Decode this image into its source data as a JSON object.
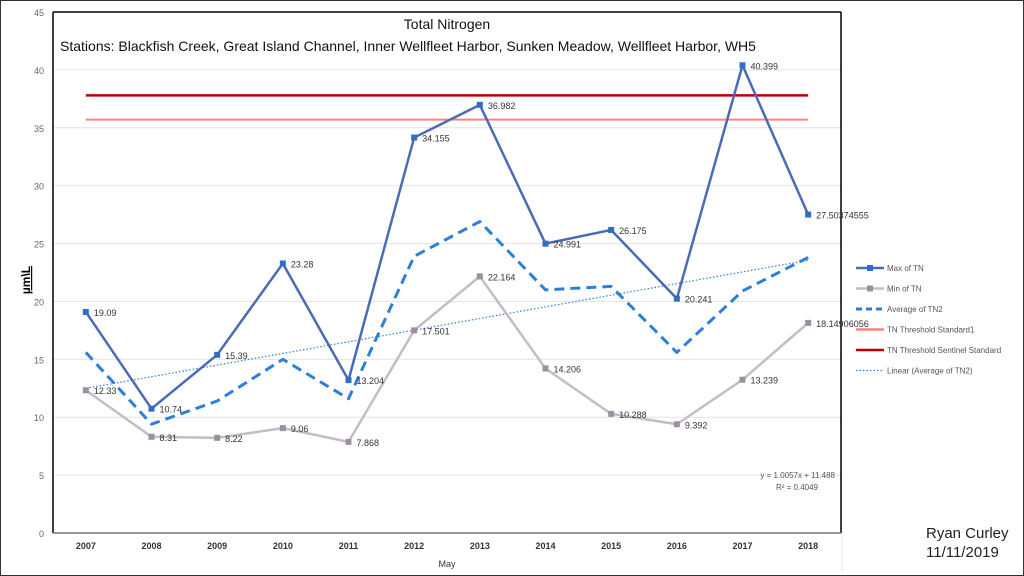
{
  "chart_data": {
    "type": "line",
    "title": "Total Nitrogen",
    "subtitle": "Stations: Blackfish Creek, Great Island Channel, Inner Wellfleet Harbor, Sunken Meadow, Wellfleet Harbor, WH5",
    "xlabel": "May",
    "ylabel": "µm\\L",
    "ylim": [
      0,
      45
    ],
    "yticks": [
      "0",
      "5",
      "10",
      "15",
      "20",
      "25",
      "30",
      "35",
      "40",
      "45"
    ],
    "categories": [
      "2007",
      "2008",
      "2009",
      "2010",
      "2011",
      "2012",
      "2013",
      "2014",
      "2015",
      "2016",
      "2017",
      "2018"
    ],
    "grid": true,
    "legend_position": "right",
    "series": [
      {
        "name": "Max of TN",
        "color": "#4a6bb5",
        "values": [
          19.09,
          10.74,
          15.39,
          23.28,
          13.204,
          34.155,
          36.982,
          24.991,
          26.175,
          20.241,
          40.399,
          27.50374555
        ],
        "labels": [
          "19.09",
          "10.74",
          "15.39",
          "23.28",
          "13.204",
          "34.155",
          "36.982",
          "24.991",
          "26.175",
          "20.241",
          "40.399",
          "27.50374555"
        ]
      },
      {
        "name": "Min of TN",
        "color": "#c4bcc6",
        "values": [
          12.33,
          8.31,
          8.22,
          9.06,
          7.868,
          17.501,
          22.164,
          14.206,
          10.288,
          9.392,
          13.239,
          18.14906056
        ],
        "labels": [
          "12.33",
          "8.31",
          "8.22",
          "9.06",
          "7.868",
          "17.501",
          "22.164",
          "14.206",
          "10.288",
          "9.392",
          "13.239",
          "18.14906056"
        ]
      },
      {
        "name": "Average of TN2",
        "color": "#2e7fd9",
        "values": [
          15.6,
          9.4,
          11.4,
          15.0,
          11.6,
          23.9,
          26.9,
          21.0,
          21.3,
          15.6,
          20.9,
          23.8
        ]
      },
      {
        "name": "TN Threshold Standard1",
        "color": "#ff8080",
        "constant": 35.7
      },
      {
        "name": "TN Threshold Sentinel Standard",
        "color": "#c00000",
        "constant": 37.8
      },
      {
        "name": "Linear (Average of TN2)",
        "color": "#2e7fd9",
        "slope": 1.0057,
        "intercept": 11.488
      }
    ],
    "trendline_equation": "y = 1.0057x + 11.488",
    "trendline_r2": "R² = 0.4049"
  },
  "signature": {
    "name": "Ryan Curley",
    "date": "11/11/2019"
  }
}
